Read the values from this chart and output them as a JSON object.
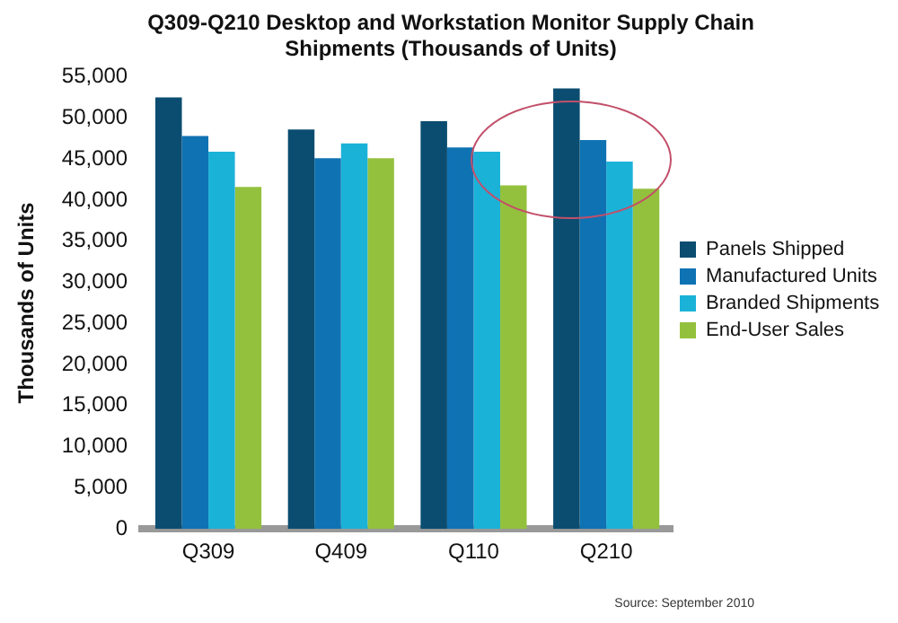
{
  "chart_data": {
    "type": "bar",
    "title": "Q309-Q210 Desktop and Workstation Monitor Supply Chain\nShipments (Thousands of Units)",
    "ylabel": "Thousands of Units",
    "categories": [
      "Q309",
      "Q409",
      "Q110",
      "Q210"
    ],
    "series": [
      {
        "name": "Panels Shipped",
        "color": "#0b4d70",
        "values": [
          52500,
          48600,
          49600,
          53600
        ]
      },
      {
        "name": "Manufactured Units",
        "color": "#0f72b3",
        "values": [
          47800,
          45100,
          46400,
          47300
        ]
      },
      {
        "name": "Branded Shipments",
        "color": "#1bb2d8",
        "values": [
          45900,
          46900,
          45900,
          44700
        ]
      },
      {
        "name": "End-User Sales",
        "color": "#94c13d",
        "values": [
          41600,
          45100,
          41800,
          41400
        ]
      }
    ],
    "ylim": [
      0,
      55000
    ],
    "yticks": [
      0,
      {
        "value": 5000,
        "label": "5,000"
      },
      {
        "value": 10000,
        "label": "10,000"
      },
      {
        "value": 15000,
        "label": "15,000"
      },
      {
        "value": 20000,
        "label": "20,000"
      },
      {
        "value": 25000,
        "label": "25,000"
      },
      {
        "value": 30000,
        "label": "30,000"
      },
      {
        "value": 35000,
        "label": "35,000"
      },
      {
        "value": 40000,
        "label": "40,000"
      },
      {
        "value": 45000,
        "label": "45,000"
      },
      {
        "value": 50000,
        "label": "50,000"
      },
      {
        "value": 55000,
        "label": "55,000"
      }
    ],
    "grid": false,
    "legend": "right",
    "annotations": [
      "Source: September 2010"
    ]
  }
}
